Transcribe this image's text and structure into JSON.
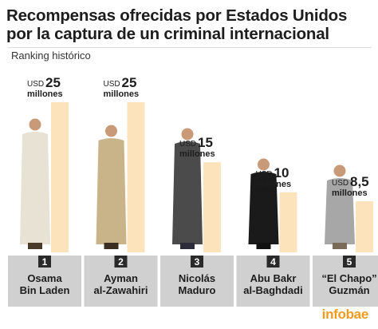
{
  "page": {
    "title_line1": "Recompensas ofrecidas por Estados Unidos",
    "title_line2": "por la captura de un criminal internacional",
    "subtitle": "Ranking histórico",
    "logo": "infobae"
  },
  "colors": {
    "bar": "#fce3bb",
    "base": "#d0d0d0",
    "rank_box": "#2a2a2a",
    "text": "#1d1d1d",
    "brand": "#f29b1d"
  },
  "chart_data": {
    "type": "bar",
    "title": "Recompensas ofrecidas por Estados Unidos por la captura de un criminal internacional",
    "subtitle": "Ranking histórico",
    "ylim": [
      0,
      25
    ],
    "grid": false,
    "unit_prefix": "USD",
    "unit_suffix": "millones",
    "categories": [
      {
        "rank": "1",
        "name_line1": "Osama",
        "name_line2": "Bin Laden"
      },
      {
        "rank": "2",
        "name_line1": "Ayman",
        "name_line2": "al-Zawahiri"
      },
      {
        "rank": "3",
        "name_line1": "Nicolás",
        "name_line2": "Maduro"
      },
      {
        "rank": "4",
        "name_line1": "Abu Bakr",
        "name_line2": "al-Baghdadi"
      },
      {
        "rank": "5",
        "name_line1": "“El Chapo”",
        "name_line2": "Guzmán"
      }
    ],
    "values": [
      25,
      25,
      15,
      10,
      8.5
    ],
    "value_labels": [
      "25",
      "25",
      "15",
      "10",
      "8,5"
    ]
  }
}
